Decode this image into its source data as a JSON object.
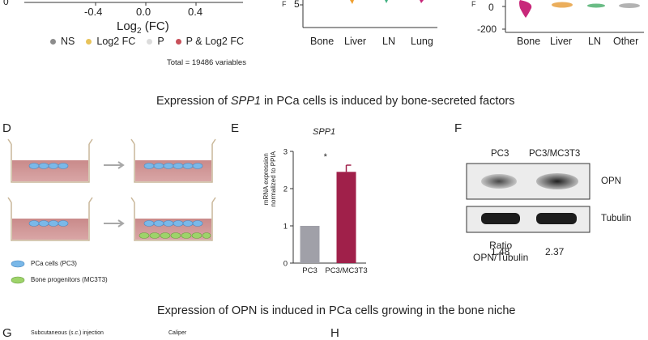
{
  "volcano": {
    "tick_labels": [
      "0",
      "-0.4",
      "0.0",
      "0.4"
    ],
    "xlabel_main": "Log",
    "xlabel_sub": "2",
    "xlabel_rest": " (FC)",
    "legend": [
      {
        "label": "NS",
        "color": "#8c8c8c"
      },
      {
        "label": "Log2 FC",
        "color": "#e8c35a"
      },
      {
        "label": "P",
        "color": "#dcdcdc"
      },
      {
        "label": "P & Log2 FC",
        "color": "#c8505a"
      }
    ],
    "total": "Total = 19486 variables"
  },
  "violin_middle": {
    "y_tick": "5",
    "categories": [
      "Bone",
      "Liver",
      "LN",
      "Lung"
    ],
    "colors": [
      "#c8287a",
      "#f0a030",
      "#40b080",
      "#c8287a"
    ]
  },
  "violin_right": {
    "y_ticks": [
      "0",
      "-200"
    ],
    "categories": [
      "Bone",
      "Liver",
      "LN",
      "Other"
    ],
    "colors": [
      "#c8287a",
      "#e8a040",
      "#50b070",
      "#a0a0a0"
    ]
  },
  "section1_title_pre": "Expression of ",
  "section1_title_gene": "SPP1",
  "section1_title_post": " in PCa cells is induced by bone-secreted factors",
  "panel_d": {
    "letter": "D",
    "legend": [
      {
        "label": "PCa cells (PC3)",
        "color": "#7ab8e8"
      },
      {
        "label": "Bone progenitors (MC3T3)",
        "color": "#9ed36a"
      }
    ]
  },
  "panel_e": {
    "letter": "E",
    "title": "SPP1",
    "ylabel_line1": "mRNA expression",
    "ylabel_line2": "normalized to PPIA",
    "significance": "*",
    "chart_data": {
      "type": "bar",
      "categories": [
        "PC3",
        "PC3/MC3T3"
      ],
      "values": [
        1.0,
        2.45
      ],
      "errors": [
        0,
        0.18
      ],
      "colors": [
        "#a0a0a8",
        "#a0204a"
      ],
      "title": "SPP1",
      "xlabel": "",
      "ylabel": "mRNA expression normalized to PPIA",
      "ylim": [
        0,
        3
      ],
      "y_ticks": [
        0,
        1,
        2,
        3
      ],
      "significance": "*"
    }
  },
  "panel_f": {
    "letter": "F",
    "lanes": [
      "PC3",
      "PC3/MC3T3"
    ],
    "blot_labels": [
      "OPN",
      "Tubulin"
    ],
    "ratio_label_line1": "Ratio",
    "ratio_label_line2": "OPN/Tubulin",
    "ratios": [
      "1.48",
      "2.37"
    ]
  },
  "section2_title": "Expression of OPN is induced in PCa cells growing in the bone niche",
  "panel_g": {
    "letter": "G",
    "text_pre": "Subcutaneous (",
    "text_italic": "s.c.",
    "text_post": ") injection",
    "caliper": "Caliper"
  },
  "panel_h": {
    "letter": "H"
  }
}
